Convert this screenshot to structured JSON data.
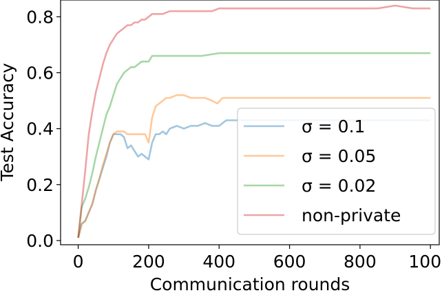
{
  "chart_data": {
    "type": "line",
    "title": "",
    "xlabel": "Communication rounds",
    "ylabel": "Test Accuracy",
    "xlim": [
      -50,
      1025
    ],
    "ylim": [
      -0.015,
      0.86
    ],
    "xticks": [
      0,
      200,
      400,
      600,
      800,
      1000
    ],
    "yticks": [
      0.0,
      0.2,
      0.4,
      0.6,
      0.8
    ],
    "xtick_labels": [
      "0",
      "200",
      "400",
      "600",
      "800",
      "1000"
    ],
    "ytick_labels": [
      "0.0",
      "0.2",
      "0.4",
      "0.6",
      "0.8"
    ],
    "grid": false,
    "legend_position": "lower right",
    "series": [
      {
        "name": "σ = 0.1",
        "color": "#1f77b4",
        "x": [
          0,
          10,
          20,
          30,
          40,
          50,
          60,
          70,
          80,
          90,
          100,
          110,
          120,
          130,
          140,
          150,
          160,
          170,
          180,
          190,
          200,
          210,
          220,
          230,
          240,
          250,
          260,
          280,
          300,
          320,
          340,
          360,
          380,
          400,
          420,
          450,
          500,
          550,
          600,
          650,
          700,
          750,
          800,
          850,
          900,
          950,
          1000
        ],
        "y": [
          0.01,
          0.06,
          0.07,
          0.1,
          0.13,
          0.18,
          0.22,
          0.26,
          0.3,
          0.35,
          0.38,
          0.38,
          0.38,
          0.37,
          0.33,
          0.34,
          0.32,
          0.3,
          0.31,
          0.3,
          0.29,
          0.35,
          0.38,
          0.38,
          0.39,
          0.38,
          0.4,
          0.41,
          0.4,
          0.41,
          0.41,
          0.42,
          0.41,
          0.41,
          0.43,
          0.43,
          0.43,
          0.43,
          0.43,
          0.43,
          0.43,
          0.43,
          0.43,
          0.43,
          0.43,
          0.43,
          0.43
        ]
      },
      {
        "name": "σ = 0.05",
        "color": "#ff7f0e",
        "x": [
          0,
          10,
          20,
          30,
          40,
          50,
          60,
          70,
          80,
          90,
          100,
          110,
          120,
          130,
          140,
          150,
          160,
          170,
          180,
          190,
          200,
          210,
          220,
          230,
          240,
          250,
          260,
          280,
          300,
          320,
          340,
          360,
          380,
          395,
          410,
          450,
          500,
          550,
          600,
          650,
          700,
          750,
          800,
          850,
          900,
          950,
          1000
        ],
        "y": [
          0.01,
          0.06,
          0.07,
          0.1,
          0.13,
          0.18,
          0.22,
          0.27,
          0.31,
          0.35,
          0.38,
          0.39,
          0.39,
          0.39,
          0.38,
          0.38,
          0.38,
          0.38,
          0.38,
          0.38,
          0.35,
          0.44,
          0.48,
          0.49,
          0.5,
          0.51,
          0.51,
          0.52,
          0.52,
          0.51,
          0.51,
          0.51,
          0.5,
          0.49,
          0.51,
          0.51,
          0.51,
          0.51,
          0.51,
          0.51,
          0.51,
          0.51,
          0.51,
          0.51,
          0.51,
          0.51,
          0.51
        ]
      },
      {
        "name": "σ = 0.02",
        "color": "#2ca02c",
        "x": [
          0,
          10,
          20,
          30,
          40,
          50,
          60,
          70,
          80,
          90,
          100,
          110,
          120,
          130,
          140,
          150,
          160,
          170,
          180,
          190,
          200,
          210,
          220,
          240,
          260,
          300,
          350,
          400,
          450,
          500,
          600,
          700,
          800,
          900,
          1000
        ],
        "y": [
          0.01,
          0.12,
          0.15,
          0.19,
          0.24,
          0.3,
          0.35,
          0.4,
          0.45,
          0.48,
          0.52,
          0.56,
          0.58,
          0.6,
          0.61,
          0.62,
          0.62,
          0.63,
          0.64,
          0.64,
          0.64,
          0.66,
          0.66,
          0.66,
          0.66,
          0.66,
          0.66,
          0.67,
          0.67,
          0.67,
          0.67,
          0.67,
          0.67,
          0.67,
          0.67
        ]
      },
      {
        "name": "non-private",
        "color": "#d62728",
        "x": [
          0,
          10,
          20,
          30,
          40,
          50,
          60,
          70,
          80,
          90,
          100,
          110,
          120,
          130,
          140,
          150,
          160,
          170,
          180,
          190,
          200,
          210,
          220,
          240,
          260,
          280,
          300,
          320,
          340,
          360,
          380,
          400,
          430,
          460,
          500,
          550,
          600,
          650,
          700,
          750,
          800,
          850,
          900,
          950,
          1000
        ],
        "y": [
          0.01,
          0.13,
          0.25,
          0.38,
          0.46,
          0.53,
          0.58,
          0.63,
          0.67,
          0.7,
          0.72,
          0.74,
          0.75,
          0.76,
          0.77,
          0.77,
          0.78,
          0.78,
          0.79,
          0.79,
          0.8,
          0.81,
          0.81,
          0.81,
          0.82,
          0.82,
          0.82,
          0.82,
          0.82,
          0.82,
          0.82,
          0.83,
          0.83,
          0.83,
          0.83,
          0.83,
          0.83,
          0.83,
          0.83,
          0.83,
          0.83,
          0.83,
          0.84,
          0.83,
          0.83
        ]
      }
    ]
  }
}
